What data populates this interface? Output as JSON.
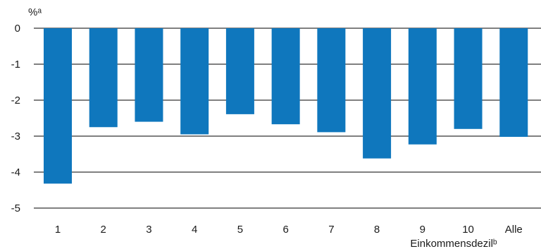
{
  "chart_data": {
    "type": "bar",
    "categories": [
      "1",
      "2",
      "3",
      "4",
      "5",
      "6",
      "7",
      "8",
      "9",
      "10",
      "Alle"
    ],
    "values": [
      -4.32,
      -2.75,
      -2.6,
      -2.95,
      -2.39,
      -2.67,
      -2.89,
      -3.62,
      -3.23,
      -2.8,
      -3.02
    ],
    "ylabel": "%ᵃ",
    "xlabel": "Einkommensdezilᵇ",
    "ylim": [
      -5,
      0
    ],
    "yticks": [
      "0",
      "-1",
      "-2",
      "-3",
      "-4",
      "-5"
    ],
    "grid": true,
    "colors": {
      "bar": "#0f77bd",
      "grid": "#000000",
      "text": "#1a1a1a"
    }
  }
}
